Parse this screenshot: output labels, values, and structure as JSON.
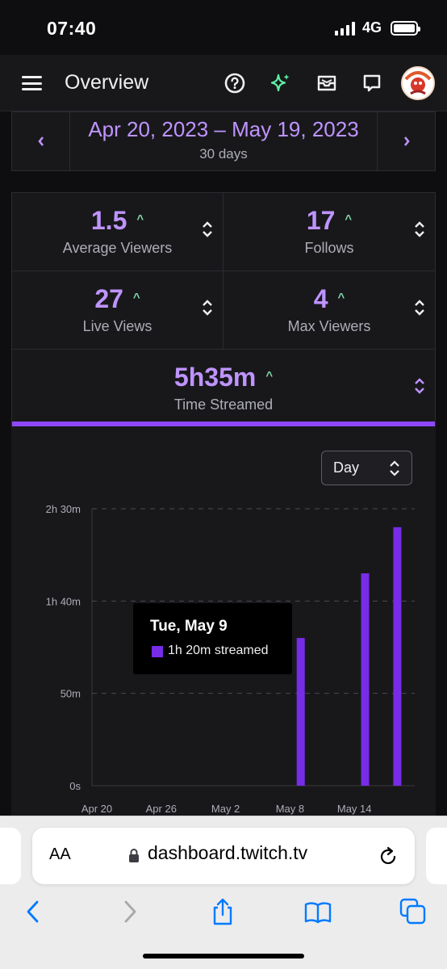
{
  "status_bar": {
    "time": "07:40",
    "network": "4G"
  },
  "header": {
    "title": "Overview"
  },
  "date": {
    "range": "Apr 20, 2023 – May 19, 2023",
    "days": "30 days"
  },
  "stats": [
    {
      "value": "1.5",
      "label": "Average Viewers"
    },
    {
      "value": "17",
      "label": "Follows"
    },
    {
      "value": "27",
      "label": "Live Views"
    },
    {
      "value": "4",
      "label": "Max Viewers"
    },
    {
      "value": "5h35m",
      "label": "Time Streamed"
    }
  ],
  "interval_select": {
    "value": "Day"
  },
  "tooltip": {
    "title": "Tue, May 9",
    "text": "1h 20m streamed"
  },
  "browser": {
    "aa": "AA",
    "url": "dashboard.twitch.tv"
  },
  "colors": {
    "accent": "#bf94ff",
    "bar": "#772ce8",
    "bg": "#0e0e10",
    "panel": "#18181b"
  },
  "chart_data": {
    "type": "bar",
    "ylabel": "",
    "xlabel": "",
    "y_ticks": [
      "2h 30m",
      "1h 40m",
      "50m",
      "0s"
    ],
    "y_tick_minutes": [
      150,
      100,
      50,
      0
    ],
    "x_ticks": [
      "Apr 20",
      "Apr 26",
      "May 2",
      "May 8",
      "May 14"
    ],
    "ylim_minutes": [
      0,
      150
    ],
    "x_start": "Apr 20",
    "series": [
      {
        "values": [
          {
            "date": "May 9",
            "minutes": 80
          },
          {
            "date": "May 15",
            "minutes": 115
          },
          {
            "date": "May 18",
            "minutes": 140
          }
        ]
      }
    ],
    "grid": true
  }
}
